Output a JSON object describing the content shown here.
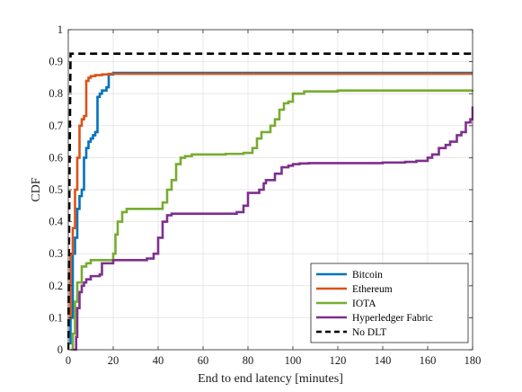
{
  "chart_data": {
    "type": "line",
    "title": "",
    "xlabel": "End to end latency [minutes]",
    "ylabel": "CDF",
    "xlim": [
      0,
      180
    ],
    "ylim": [
      0,
      1
    ],
    "x_ticks": [
      0,
      20,
      40,
      60,
      80,
      100,
      120,
      140,
      160,
      180
    ],
    "y_ticks": [
      0,
      0.1,
      0.2,
      0.3,
      0.4,
      0.5,
      0.6,
      0.7,
      0.8,
      0.9,
      1
    ],
    "x_tick_labels": [
      "0",
      "20",
      "40",
      "60",
      "80",
      "100",
      "120",
      "140",
      "160",
      "180"
    ],
    "y_tick_labels": [
      "0",
      "0.1",
      "0.2",
      "0.3",
      "0.4",
      "0.5",
      "0.6",
      "0.7",
      "0.8",
      "0.9",
      "1"
    ],
    "grid": true,
    "legend_position": "bottom-right",
    "series": [
      {
        "name": "Bitcoin",
        "color": "#0072BD",
        "style": "solid",
        "x": [
          0.5,
          1,
          2,
          3,
          4,
          5,
          6,
          7,
          8,
          9,
          10,
          11,
          12,
          13,
          14,
          15,
          16,
          17,
          18,
          20,
          180
        ],
        "y": [
          0.02,
          0.1,
          0.3,
          0.35,
          0.44,
          0.48,
          0.5,
          0.6,
          0.63,
          0.65,
          0.66,
          0.67,
          0.68,
          0.79,
          0.8,
          0.81,
          0.81,
          0.82,
          0.86,
          0.865,
          0.865
        ]
      },
      {
        "name": "Ethereum",
        "color": "#D95319",
        "style": "solid",
        "x": [
          0.5,
          1,
          2,
          3,
          4,
          5,
          6,
          7,
          8,
          9,
          10,
          11,
          12,
          13,
          15,
          18,
          20,
          180
        ],
        "y": [
          0.1,
          0.3,
          0.38,
          0.5,
          0.6,
          0.7,
          0.72,
          0.73,
          0.84,
          0.85,
          0.855,
          0.855,
          0.858,
          0.858,
          0.86,
          0.862,
          0.862,
          0.862
        ]
      },
      {
        "name": "IOTA",
        "color": "#77AC30",
        "style": "solid",
        "x": [
          1,
          2,
          3,
          4,
          6,
          8,
          10,
          12,
          18,
          20,
          21,
          22,
          24,
          26,
          30,
          40,
          42,
          44,
          45,
          46,
          48,
          50,
          52,
          55,
          60,
          65,
          70,
          78,
          82,
          84,
          86,
          88,
          90,
          92,
          94,
          96,
          98,
          100,
          105,
          120,
          140,
          160,
          180
        ],
        "y": [
          0.0,
          0.05,
          0.15,
          0.21,
          0.26,
          0.27,
          0.28,
          0.28,
          0.28,
          0.3,
          0.36,
          0.4,
          0.43,
          0.44,
          0.44,
          0.44,
          0.46,
          0.5,
          0.5,
          0.53,
          0.58,
          0.6,
          0.605,
          0.61,
          0.61,
          0.61,
          0.612,
          0.615,
          0.63,
          0.66,
          0.68,
          0.68,
          0.7,
          0.72,
          0.75,
          0.77,
          0.775,
          0.8,
          0.807,
          0.81,
          0.81,
          0.81,
          0.812
        ]
      },
      {
        "name": "Hyperledger Fabric",
        "color": "#7E2F8E",
        "style": "solid",
        "x": [
          2,
          3,
          3.5,
          4,
          5,
          6,
          7,
          8,
          10,
          12,
          14,
          15,
          20,
          25,
          30,
          35,
          38,
          40,
          42,
          44,
          46,
          50,
          55,
          60,
          70,
          75,
          78,
          80,
          85,
          87,
          88,
          90,
          92,
          95,
          98,
          100,
          103,
          107,
          112,
          120,
          140,
          150,
          155,
          160,
          162,
          165,
          168,
          170,
          173,
          175,
          177,
          179,
          180
        ],
        "y": [
          0.0,
          0.0,
          0.04,
          0.13,
          0.18,
          0.2,
          0.21,
          0.22,
          0.23,
          0.23,
          0.235,
          0.27,
          0.28,
          0.28,
          0.28,
          0.285,
          0.3,
          0.35,
          0.4,
          0.42,
          0.425,
          0.425,
          0.425,
          0.425,
          0.425,
          0.43,
          0.45,
          0.49,
          0.5,
          0.52,
          0.53,
          0.53,
          0.55,
          0.57,
          0.575,
          0.58,
          0.582,
          0.583,
          0.583,
          0.583,
          0.585,
          0.587,
          0.59,
          0.6,
          0.61,
          0.63,
          0.64,
          0.65,
          0.67,
          0.68,
          0.71,
          0.72,
          0.76
        ]
      },
      {
        "name": "No DLT",
        "color": "#000000",
        "style": "dashed",
        "x": [
          0,
          0.5,
          1,
          180
        ],
        "y": [
          0,
          0.5,
          0.925,
          0.925
        ]
      }
    ]
  }
}
